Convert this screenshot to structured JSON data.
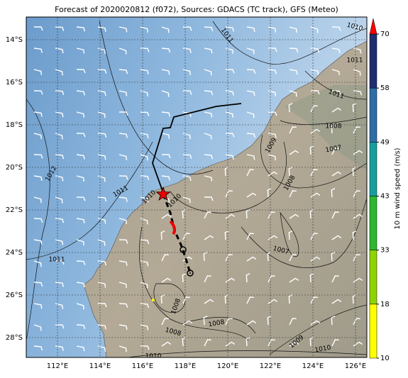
{
  "title": "Forecast of 2020020812 (f072), Sources: GDACS (TC track), GFS (Meteo)",
  "lat_labels": [
    "14°S",
    "16°S",
    "18°S",
    "20°S",
    "22°S",
    "24°S",
    "26°S",
    "28°S"
  ],
  "lon_labels": [
    "112°E",
    "114°E",
    "116°E",
    "118°E",
    "120°E",
    "122°E",
    "124°E",
    "126°E"
  ],
  "colorbar": {
    "label": "10 m wind speed (m/s)",
    "ticks": [
      10,
      18,
      33,
      43,
      49,
      58,
      70
    ],
    "colors": [
      "#ffff00",
      "#8fd400",
      "#2eb82e",
      "#159e9e",
      "#2e6ea6",
      "#1f2e6e"
    ],
    "extend_color": "#ff0000"
  },
  "contour_labels": [
    "1010",
    "1011",
    "1011",
    "1011",
    "1012",
    "1011",
    "1010",
    "1010",
    "1009",
    "1008",
    "1007",
    "1008",
    "1007",
    "1011",
    "1008",
    "1008",
    "1008",
    "1009",
    "1010",
    "1010"
  ]
}
